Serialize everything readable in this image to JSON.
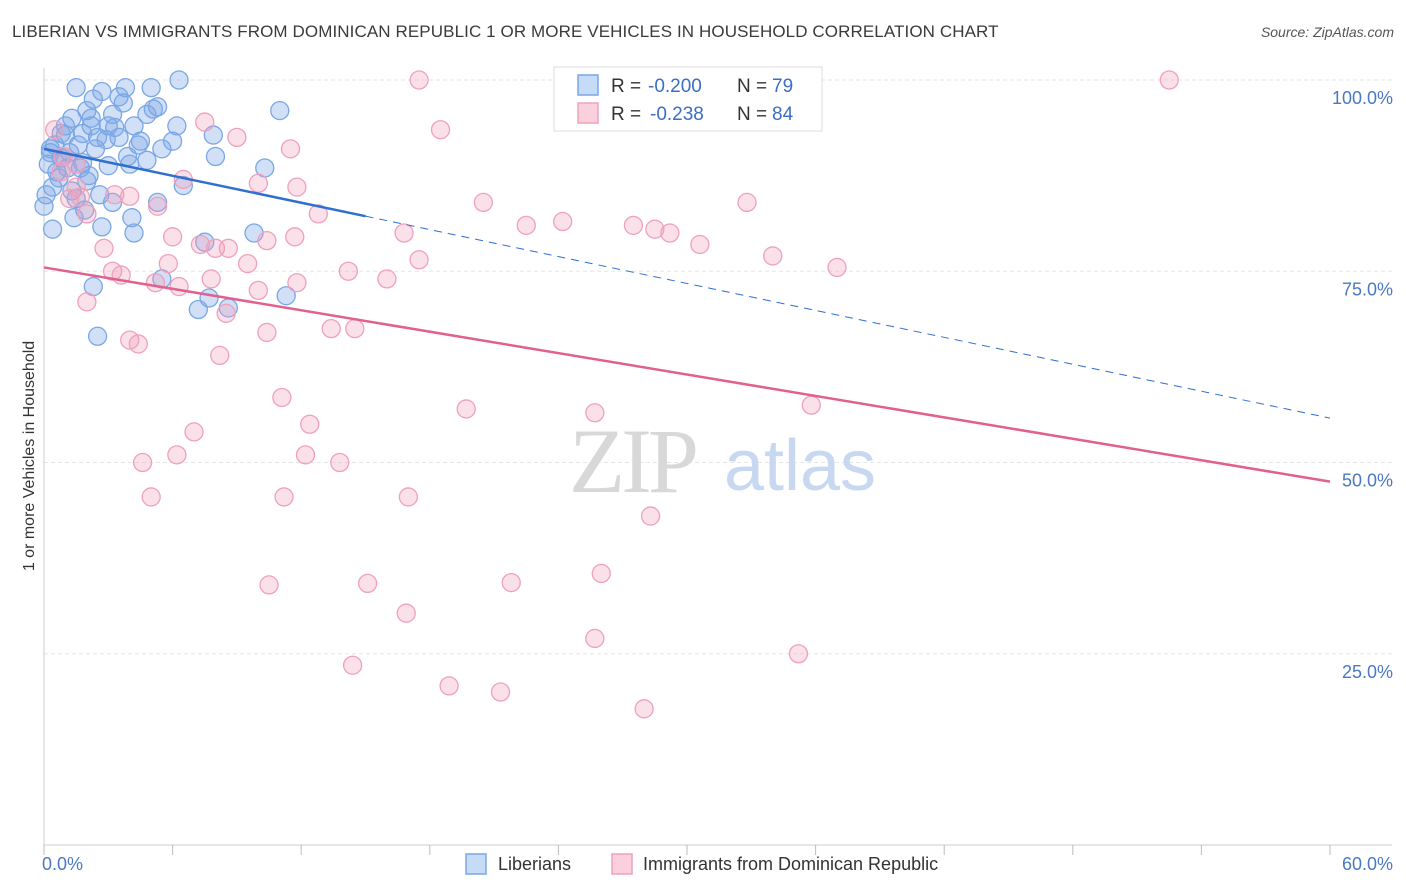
{
  "header": {
    "title": "LIBERIAN VS IMMIGRANTS FROM DOMINICAN REPUBLIC 1 OR MORE VEHICLES IN HOUSEHOLD CORRELATION CHART",
    "source": "Source: ZipAtlas.com"
  },
  "watermark": {
    "zip": "ZIP",
    "atlas": "atlas"
  },
  "legend_top": [
    {
      "r_label": "R =",
      "r_value": "-0.200",
      "n_label": "N =",
      "n_value": "79"
    },
    {
      "r_label": "R =",
      "r_value": "-0.238",
      "n_label": "N =",
      "n_value": "84"
    }
  ],
  "chart_data": {
    "type": "scatter",
    "xlabel": "",
    "ylabel": "1 or more Vehicles in Household",
    "xlim": [
      0,
      60
    ],
    "ylim": [
      0,
      105
    ],
    "x_tick_labels": {
      "left": "0.0%",
      "right": "60.0%"
    },
    "y_ticks": [
      {
        "value": 100,
        "label": "100.0%"
      },
      {
        "value": 75,
        "label": "75.0%"
      },
      {
        "value": 50,
        "label": "50.0%"
      },
      {
        "value": 25,
        "label": "25.0%"
      }
    ],
    "grid": true,
    "legend_position": "bottom",
    "series": [
      {
        "name": "Liberians",
        "color": "#7aa7e6",
        "line_color": "#2e6fd0",
        "trend": {
          "x0": 0,
          "y0": 91,
          "x1": 15,
          "y1": 82.2,
          "dash_to_x": 60,
          "dash_to_y": 55.8
        },
        "points": [
          [
            1.5,
            99
          ],
          [
            2.7,
            98.5
          ],
          [
            3.8,
            99
          ],
          [
            5.0,
            99
          ],
          [
            6.3,
            100
          ],
          [
            2.3,
            97.5
          ],
          [
            3.7,
            97
          ],
          [
            5.3,
            96.5
          ],
          [
            2.0,
            96
          ],
          [
            3.2,
            95.5
          ],
          [
            4.8,
            95.5
          ],
          [
            1.3,
            95
          ],
          [
            1.0,
            94
          ],
          [
            2.2,
            94
          ],
          [
            3.0,
            94
          ],
          [
            4.2,
            94
          ],
          [
            0.8,
            93
          ],
          [
            1.8,
            93
          ],
          [
            2.5,
            92.5
          ],
          [
            3.5,
            92.5
          ],
          [
            4.5,
            92
          ],
          [
            0.5,
            91.5
          ],
          [
            1.6,
            91.5
          ],
          [
            2.4,
            91
          ],
          [
            5.5,
            91
          ],
          [
            0.3,
            90.5
          ],
          [
            0.9,
            90
          ],
          [
            3.9,
            90
          ],
          [
            0.2,
            89
          ],
          [
            1.1,
            88.5
          ],
          [
            1.7,
            88.5
          ],
          [
            0.6,
            88
          ],
          [
            2.1,
            87.5
          ],
          [
            4.0,
            89
          ],
          [
            6.2,
            94
          ],
          [
            7.9,
            92.8
          ],
          [
            8.0,
            90
          ],
          [
            10.3,
            88.5
          ],
          [
            11.0,
            96
          ],
          [
            0.4,
            86
          ],
          [
            1.3,
            85.5
          ],
          [
            0.1,
            85
          ],
          [
            2.6,
            85
          ],
          [
            3.2,
            84
          ],
          [
            0.0,
            83.5
          ],
          [
            1.9,
            83
          ],
          [
            4.1,
            82
          ],
          [
            5.3,
            84
          ],
          [
            1.4,
            82
          ],
          [
            0.4,
            80.5
          ],
          [
            4.2,
            80
          ],
          [
            7.5,
            78.8
          ],
          [
            5.5,
            74
          ],
          [
            2.3,
            73
          ],
          [
            7.7,
            71.5
          ],
          [
            7.2,
            70
          ],
          [
            11.3,
            71.8
          ],
          [
            2.5,
            66.5
          ],
          [
            8.6,
            70.2
          ],
          [
            6.0,
            92
          ],
          [
            9.8,
            80
          ],
          [
            4.8,
            89.5
          ],
          [
            3.5,
            97.8
          ],
          [
            2.9,
            92.2
          ],
          [
            1.2,
            90.5
          ],
          [
            0.7,
            87.2
          ],
          [
            1.8,
            89.2
          ],
          [
            2.2,
            95
          ],
          [
            3.3,
            93.8
          ],
          [
            5.1,
            96.2
          ],
          [
            0.3,
            91
          ],
          [
            1.5,
            84.5
          ],
          [
            2.7,
            80.8
          ],
          [
            6.5,
            86.2
          ],
          [
            4.4,
            91.5
          ],
          [
            1.0,
            92.8
          ],
          [
            3.0,
            88.8
          ],
          [
            0.8,
            89.8
          ],
          [
            2.0,
            86.8
          ]
        ]
      },
      {
        "name": "Immigrants from Dominican Republic",
        "color": "#f0a0bb",
        "line_color": "#e06090",
        "trend": {
          "x0": 0,
          "y0": 75.5,
          "x1": 60,
          "y1": 47.5
        },
        "points": [
          [
            17.5,
            100
          ],
          [
            52.5,
            100
          ],
          [
            0.5,
            93.5
          ],
          [
            7.5,
            94.5
          ],
          [
            9.0,
            92.5
          ],
          [
            18.5,
            93.5
          ],
          [
            11.5,
            91
          ],
          [
            0.9,
            90
          ],
          [
            0.8,
            88
          ],
          [
            1.5,
            89
          ],
          [
            6.5,
            87
          ],
          [
            10.0,
            86.5
          ],
          [
            11.8,
            86
          ],
          [
            1.5,
            86
          ],
          [
            1.2,
            84.5
          ],
          [
            1.7,
            84.7
          ],
          [
            3.3,
            85
          ],
          [
            4.0,
            84.8
          ],
          [
            5.3,
            83.5
          ],
          [
            20.5,
            84
          ],
          [
            32.8,
            84
          ],
          [
            12.8,
            82.5
          ],
          [
            22.5,
            81
          ],
          [
            24.2,
            81.5
          ],
          [
            27.5,
            81
          ],
          [
            28.5,
            80.5
          ],
          [
            29.2,
            80
          ],
          [
            16.8,
            80
          ],
          [
            6.0,
            79.5
          ],
          [
            10.4,
            79
          ],
          [
            11.7,
            79.5
          ],
          [
            7.3,
            78.5
          ],
          [
            8.0,
            78
          ],
          [
            2.8,
            78
          ],
          [
            8.6,
            78
          ],
          [
            30.6,
            78.5
          ],
          [
            34.0,
            77
          ],
          [
            9.5,
            76
          ],
          [
            17.5,
            76.5
          ],
          [
            37.0,
            75.5
          ],
          [
            14.2,
            75
          ],
          [
            3.2,
            75
          ],
          [
            5.8,
            76
          ],
          [
            3.6,
            74.5
          ],
          [
            5.2,
            73.5
          ],
          [
            7.8,
            74
          ],
          [
            6.3,
            73
          ],
          [
            10.0,
            72.5
          ],
          [
            11.8,
            73.5
          ],
          [
            16.0,
            74
          ],
          [
            2.0,
            71
          ],
          [
            8.5,
            69.5
          ],
          [
            13.4,
            67.5
          ],
          [
            14.5,
            67.5
          ],
          [
            10.4,
            67
          ],
          [
            4.0,
            66
          ],
          [
            4.4,
            65.5
          ],
          [
            8.2,
            64
          ],
          [
            11.1,
            58.5
          ],
          [
            19.7,
            57
          ],
          [
            25.7,
            56.5
          ],
          [
            35.8,
            57.5
          ],
          [
            12.4,
            55
          ],
          [
            7.0,
            54
          ],
          [
            6.2,
            51
          ],
          [
            12.2,
            51
          ],
          [
            4.6,
            50
          ],
          [
            13.8,
            50
          ],
          [
            5.0,
            45.5
          ],
          [
            11.2,
            45.5
          ],
          [
            17.0,
            45.5
          ],
          [
            28.3,
            43
          ],
          [
            26.0,
            35.5
          ],
          [
            10.5,
            34
          ],
          [
            15.1,
            34.2
          ],
          [
            21.8,
            34.3
          ],
          [
            16.9,
            30.3
          ],
          [
            25.7,
            27
          ],
          [
            35.2,
            25
          ],
          [
            14.4,
            23.5
          ],
          [
            18.9,
            20.8
          ],
          [
            21.3,
            20
          ],
          [
            28.0,
            17.8
          ],
          [
            2.0,
            82.5
          ]
        ]
      }
    ]
  },
  "bottom_legend": [
    {
      "label": "Liberians"
    },
    {
      "label": "Immigrants from Dominican Republic"
    }
  ]
}
